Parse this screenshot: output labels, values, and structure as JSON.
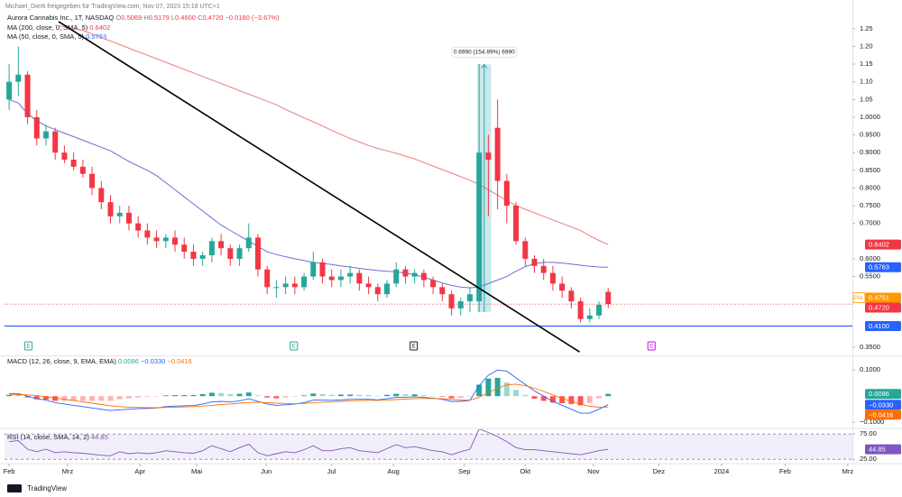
{
  "header": {
    "shared": "Michael_Dierti freigegeben für TradingView.com, Nov 07, 2023 15:18 UTC+1",
    "symbol": "Aurora Cannabis Inc., 1T, NASDAQ",
    "ohlc": [
      "O",
      "0.5069",
      "H",
      "0.5179",
      "L",
      "0.4600",
      "C",
      "0.4720"
    ],
    "change": "−0.0180 (−3.67%)"
  },
  "footer": "TradingView",
  "chart_data": [
    {
      "type": "candlestick",
      "xlim": [
        -0.5,
        91.5
      ],
      "xticks": [
        {
          "value": 0,
          "label": "Feb"
        },
        {
          "value": 6.35,
          "label": "Mrz"
        },
        {
          "value": 14.2,
          "label": "Apr"
        },
        {
          "value": 20.35,
          "label": "Mai"
        },
        {
          "value": 27.9,
          "label": "Jun"
        },
        {
          "value": 35,
          "label": "Jul"
        },
        {
          "value": 41.7,
          "label": "Aug"
        },
        {
          "value": 49.4,
          "label": "Sep"
        },
        {
          "value": 56,
          "label": "Okt"
        },
        {
          "value": 63.4,
          "label": "Nov"
        },
        {
          "value": 70.5,
          "label": "Dez"
        },
        {
          "value": 77.3,
          "label": "2024"
        },
        {
          "value": 84.2,
          "label": "Feb"
        },
        {
          "value": 91,
          "label": "Mrz"
        }
      ],
      "ylim": [
        0.34,
        1.28
      ],
      "yticks": [
        1.25,
        {
          "value": 1.2,
          "label": "1.20"
        },
        1.15,
        {
          "value": 1.1,
          "label": "1.10"
        },
        1.05,
        {
          "value": 1,
          "label": "1.0000"
        },
        {
          "value": 0.95,
          "label": "0.9500"
        },
        {
          "value": 0.9,
          "label": "0.9000"
        },
        {
          "value": 0.85,
          "label": "0.8500"
        },
        {
          "value": 0.8,
          "label": "0.8000"
        },
        {
          "value": 0.75,
          "label": "0.7500"
        },
        {
          "value": 0.7,
          "label": "0.7000"
        },
        {
          "value": 0.6,
          "label": "0.6000"
        },
        {
          "value": 0.55,
          "label": "0.5500"
        },
        {
          "value": 0.35,
          "label": "0.3500"
        }
      ],
      "up_color": "#26a69a",
      "down_color": "#f23645",
      "open": [
        1.05,
        1.1,
        1.12,
        1.0,
        0.94,
        0.96,
        0.9,
        0.88,
        0.86,
        0.84,
        0.8,
        0.76,
        0.72,
        0.73,
        0.7,
        0.68,
        0.66,
        0.65,
        0.66,
        0.64,
        0.62,
        0.6,
        0.61,
        0.65,
        0.63,
        0.6,
        0.63,
        0.66,
        0.57,
        0.52,
        0.52,
        0.53,
        0.52,
        0.55,
        0.59,
        0.55,
        0.54,
        0.55,
        0.56,
        0.53,
        0.52,
        0.5,
        0.53,
        0.57,
        0.55,
        0.56,
        0.54,
        0.52,
        0.5,
        0.46,
        0.48,
        0.48,
        0.9,
        0.97,
        0.82,
        0.75,
        0.65,
        0.6,
        0.58,
        0.56,
        0.53,
        0.51,
        0.48,
        0.43,
        0.44,
        0.5069
      ],
      "high": [
        1.15,
        1.2,
        1.13,
        1.02,
        0.98,
        0.97,
        0.92,
        0.9,
        0.88,
        0.86,
        0.82,
        0.78,
        0.75,
        0.75,
        0.72,
        0.7,
        0.68,
        0.67,
        0.68,
        0.66,
        0.64,
        0.62,
        0.66,
        0.67,
        0.64,
        0.64,
        0.7,
        0.67,
        0.58,
        0.54,
        0.55,
        0.55,
        0.56,
        0.62,
        0.6,
        0.57,
        0.57,
        0.58,
        0.57,
        0.55,
        0.53,
        0.54,
        0.59,
        0.58,
        0.57,
        0.57,
        0.55,
        0.53,
        0.51,
        0.49,
        0.52,
        1.15,
        0.95,
        1.05,
        0.84,
        0.76,
        0.66,
        0.61,
        0.6,
        0.58,
        0.55,
        0.52,
        0.49,
        0.46,
        0.48,
        0.5179
      ],
      "low": [
        1.02,
        1.06,
        0.98,
        0.92,
        0.92,
        0.88,
        0.87,
        0.85,
        0.83,
        0.78,
        0.74,
        0.7,
        0.7,
        0.68,
        0.66,
        0.64,
        0.63,
        0.63,
        0.62,
        0.6,
        0.58,
        0.58,
        0.59,
        0.61,
        0.58,
        0.58,
        0.62,
        0.55,
        0.5,
        0.49,
        0.5,
        0.5,
        0.51,
        0.54,
        0.53,
        0.52,
        0.52,
        0.53,
        0.51,
        0.5,
        0.48,
        0.49,
        0.52,
        0.53,
        0.53,
        0.52,
        0.5,
        0.48,
        0.44,
        0.44,
        0.45,
        0.45,
        0.72,
        0.74,
        0.7,
        0.64,
        0.58,
        0.56,
        0.54,
        0.51,
        0.49,
        0.46,
        0.42,
        0.42,
        0.43,
        0.46
      ],
      "close": [
        1.1,
        1.12,
        1.0,
        0.94,
        0.96,
        0.9,
        0.88,
        0.86,
        0.84,
        0.8,
        0.76,
        0.72,
        0.73,
        0.7,
        0.68,
        0.66,
        0.65,
        0.66,
        0.64,
        0.62,
        0.6,
        0.61,
        0.65,
        0.63,
        0.6,
        0.63,
        0.66,
        0.57,
        0.52,
        0.52,
        0.53,
        0.52,
        0.55,
        0.59,
        0.55,
        0.54,
        0.55,
        0.56,
        0.53,
        0.52,
        0.5,
        0.53,
        0.57,
        0.55,
        0.56,
        0.54,
        0.52,
        0.5,
        0.46,
        0.48,
        0.5,
        0.9,
        0.88,
        0.82,
        0.75,
        0.65,
        0.6,
        0.58,
        0.56,
        0.53,
        0.51,
        0.48,
        0.43,
        0.44,
        0.47,
        0.472
      ],
      "series": [
        {
          "name": "MA (200, close, 0, SMA, 5)",
          "color": "#ef7d7d",
          "values": [
            null,
            null,
            null,
            null,
            null,
            1.26,
            1.255,
            1.25,
            1.245,
            1.235,
            1.225,
            1.215,
            1.205,
            1.195,
            1.185,
            1.175,
            1.165,
            1.155,
            1.145,
            1.135,
            1.125,
            1.115,
            1.105,
            1.095,
            1.085,
            1.075,
            1.065,
            1.055,
            1.045,
            1.035,
            1.022,
            1.01,
            0.998,
            0.987,
            0.975,
            0.963,
            0.951,
            0.94,
            0.93,
            0.92,
            0.912,
            0.905,
            0.898,
            0.89,
            0.882,
            0.872,
            0.862,
            0.852,
            0.842,
            0.832,
            0.822,
            0.81,
            0.795,
            0.78,
            0.765,
            0.75,
            0.74,
            0.73,
            0.72,
            0.71,
            0.7,
            0.69,
            0.68,
            0.665,
            0.652,
            0.6402
          ]
        },
        {
          "name": "MA (50, close, 0, SMA, 5)",
          "color": "#6f6ed4",
          "values": [
            1.05,
            1.04,
            1.01,
            0.99,
            0.975,
            0.965,
            0.955,
            0.945,
            0.935,
            0.925,
            0.915,
            0.905,
            0.89,
            0.875,
            0.862,
            0.85,
            0.835,
            0.815,
            0.795,
            0.775,
            0.755,
            0.735,
            0.715,
            0.695,
            0.68,
            0.665,
            0.65,
            0.635,
            0.62,
            0.612,
            0.606,
            0.6,
            0.595,
            0.59,
            0.587,
            0.584,
            0.58,
            0.577,
            0.573,
            0.57,
            0.567,
            0.565,
            0.563,
            0.56,
            0.555,
            0.548,
            0.54,
            0.532,
            0.525,
            0.52,
            0.518,
            0.52,
            0.53,
            0.54,
            0.55,
            0.565,
            0.578,
            0.586,
            0.59,
            0.59,
            0.588,
            0.585,
            0.582,
            0.579,
            0.577,
            0.5763
          ]
        }
      ],
      "trendline": {
        "x": [
          5.37,
          61.9
        ],
        "y": [
          1.27,
          0.337
        ],
        "color": "#000000"
      },
      "hlines": [
        {
          "value": 0.41,
          "color": "#2962ff",
          "style": "solid"
        },
        {
          "value": 0.472,
          "color": "#f23645",
          "style": "dotted"
        }
      ],
      "badges": [
        {
          "value": 0.6402,
          "color": "#f23645"
        },
        {
          "value": 0.5763,
          "color": "#2962ff"
        },
        {
          "tag": "Pre",
          "value": 0.4751,
          "color": "#ff9800"
        },
        {
          "value": 0.472,
          "label": "0.4720",
          "color": "#f23645"
        },
        {
          "value": 0.41,
          "label": "0.4100",
          "color": "#2962ff"
        }
      ],
      "measure": {
        "x": [
          50.8,
          52.3
        ],
        "from": 0.45,
        "to": 1.149,
        "label": "0.6990 (154.99%) 6990",
        "color": "#26a6b0"
      },
      "events": [
        {
          "x": 2.1,
          "label": "E",
          "color": "#26a69a"
        },
        {
          "x": 30.9,
          "label": "E",
          "color": "#26a69a"
        },
        {
          "x": 43.9,
          "label": "E",
          "color": "#131722"
        },
        {
          "x": 69.7,
          "label": "E",
          "color": "#d500f9"
        }
      ]
    },
    {
      "type": "macd",
      "name": "MACD (12, 26, close, 9, EMA, EMA)",
      "ylim": [
        -0.12,
        0.13
      ],
      "yticks": [
        {
          "value": 0.1,
          "label": "0.1000"
        },
        {
          "value": -0.1,
          "label": "−0.1000"
        }
      ],
      "histogram": {
        "up_color": "#26a69a",
        "down_color": "#ff5252",
        "values": [
          0.005,
          0.004,
          -0.005,
          -0.012,
          -0.013,
          -0.018,
          -0.018,
          -0.018,
          -0.018,
          -0.018,
          -0.018,
          -0.018,
          -0.012,
          -0.008,
          -0.005,
          -0.003,
          -0.001,
          0.003,
          0.004,
          0.004,
          0.004,
          0.008,
          0.013,
          0.012,
          0.008,
          0.009,
          0.014,
          0.003,
          -0.005,
          -0.008,
          -0.005,
          -0.001,
          0.003,
          0.01,
          0.008,
          0.005,
          0.006,
          0.006,
          0.005,
          0.004,
          0.002,
          0.005,
          0.009,
          0.007,
          0.007,
          0.004,
          0.001,
          -0.002,
          -0.008,
          -0.006,
          -0.001,
          0.044,
          0.067,
          0.07,
          0.052,
          0.024,
          0.005,
          -0.01,
          -0.018,
          -0.025,
          -0.027,
          -0.03,
          -0.035,
          -0.026,
          -0.008,
          0.0086
        ]
      },
      "series": [
        {
          "color": "#2962ff",
          "values": [
            0.01,
            0.01,
            0.0,
            -0.01,
            -0.015,
            -0.025,
            -0.03,
            -0.035,
            -0.04,
            -0.045,
            -0.05,
            -0.055,
            -0.052,
            -0.05,
            -0.048,
            -0.047,
            -0.045,
            -0.04,
            -0.038,
            -0.037,
            -0.036,
            -0.03,
            -0.022,
            -0.02,
            -0.022,
            -0.018,
            -0.01,
            -0.02,
            -0.03,
            -0.035,
            -0.033,
            -0.03,
            -0.025,
            -0.015,
            -0.015,
            -0.016,
            -0.014,
            -0.012,
            -0.012,
            -0.012,
            -0.014,
            -0.01,
            -0.004,
            -0.004,
            -0.003,
            -0.005,
            -0.008,
            -0.012,
            -0.02,
            -0.02,
            -0.016,
            0.04,
            0.08,
            0.1,
            0.095,
            0.07,
            0.045,
            0.02,
            0.0,
            -0.02,
            -0.035,
            -0.05,
            -0.065,
            -0.065,
            -0.05,
            -0.033
          ]
        },
        {
          "color": "#ff6d00",
          "values": [
            0.005,
            0.006,
            0.005,
            0.002,
            -0.002,
            -0.007,
            -0.012,
            -0.017,
            -0.022,
            -0.027,
            -0.032,
            -0.037,
            -0.04,
            -0.042,
            -0.043,
            -0.044,
            -0.044,
            -0.043,
            -0.042,
            -0.041,
            -0.04,
            -0.038,
            -0.035,
            -0.032,
            -0.03,
            -0.027,
            -0.024,
            -0.023,
            -0.025,
            -0.027,
            -0.028,
            -0.029,
            -0.028,
            -0.025,
            -0.023,
            -0.021,
            -0.02,
            -0.018,
            -0.017,
            -0.016,
            -0.016,
            -0.015,
            -0.013,
            -0.011,
            -0.01,
            -0.009,
            -0.009,
            -0.01,
            -0.012,
            -0.014,
            -0.015,
            -0.004,
            0.013,
            0.03,
            0.043,
            0.046,
            0.04,
            0.03,
            0.018,
            0.005,
            -0.008,
            -0.02,
            -0.03,
            -0.039,
            -0.042,
            -0.0416
          ]
        }
      ],
      "badges": [
        {
          "value": 0.0086,
          "color": "#26a69a"
        },
        {
          "value": -0.033,
          "label": "−0.0330",
          "color": "#2962ff"
        },
        {
          "value": -0.0416,
          "label": "−0.0416",
          "color": "#ff6d00"
        }
      ]
    },
    {
      "type": "rsi",
      "name": "RSI (14, close, SMA, 14, 2)",
      "ylim": [
        20,
        80
      ],
      "yticks": [
        {
          "value": 75,
          "label": "75.00"
        },
        {
          "value": 25,
          "label": "25.00"
        }
      ],
      "series": [
        {
          "color": "#7e57c2",
          "values": [
            60,
            62,
            45,
            40,
            45,
            38,
            40,
            38,
            37,
            35,
            33,
            32,
            40,
            36,
            38,
            36,
            38,
            42,
            40,
            38,
            37,
            42,
            52,
            46,
            40,
            48,
            55,
            38,
            32,
            36,
            40,
            38,
            44,
            52,
            42,
            42,
            46,
            48,
            42,
            40,
            38,
            46,
            54,
            48,
            50,
            46,
            42,
            40,
            34,
            40,
            45,
            85,
            78,
            70,
            60,
            48,
            44,
            44,
            42,
            40,
            38,
            36,
            34,
            38,
            42,
            44.85
          ]
        }
      ],
      "badges": [
        {
          "value": 44.85,
          "color": "#7e57c2"
        }
      ]
    }
  ]
}
